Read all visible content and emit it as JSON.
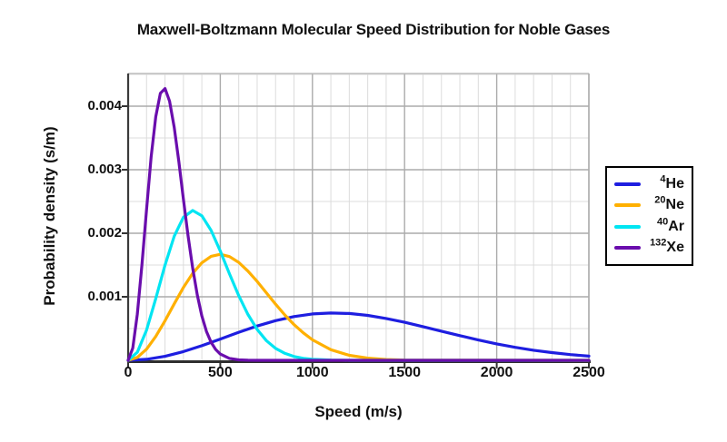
{
  "title": "Maxwell-Boltzmann Molecular Speed Distribution for Noble Gases",
  "chart_data": {
    "type": "line",
    "title": "Maxwell-Boltzmann Molecular Speed Distribution for Noble Gases",
    "xlabel": "Speed (m/s)",
    "ylabel": "Probability density (s/m)",
    "xlim": [
      0,
      2500
    ],
    "ylim": [
      0,
      0.0045143
    ],
    "x_ticks": [
      0,
      500,
      1000,
      1500,
      2000,
      2500
    ],
    "x_tick_labels": [
      "0",
      "500",
      "1000",
      "1500",
      "2000",
      "2500"
    ],
    "y_ticks": [
      0.001,
      0.002,
      0.003,
      0.004
    ],
    "y_tick_labels": [
      "0.001",
      "0.002",
      "0.003",
      "0.004"
    ],
    "grid": {
      "visible": true,
      "minor_x_step": 100,
      "major_x_step": 500,
      "minor_y_step": 0.0005,
      "major_y_step": 0.001
    },
    "legend": {
      "position": "right-outside"
    },
    "series": [
      {
        "name": "4He",
        "mass": "4",
        "symbol": "He",
        "color": "#1E1EE0",
        "peak_speed_m_s": 1113,
        "peak_density_s_m": 0.000746,
        "points": [
          [
            0,
            0
          ],
          [
            100,
            1.62e-05
          ],
          [
            200,
            6.34e-05
          ],
          [
            300,
            0.000137
          ],
          [
            400,
            0.00023
          ],
          [
            500,
            0.000334
          ],
          [
            600,
            0.000441
          ],
          [
            700,
            0.00054
          ],
          [
            800,
            0.000625
          ],
          [
            900,
            0.000689
          ],
          [
            1000,
            0.00073
          ],
          [
            1100,
            0.000745
          ],
          [
            1200,
            0.000737
          ],
          [
            1300,
            0.000707
          ],
          [
            1400,
            0.000659
          ],
          [
            1500,
            0.000599
          ],
          [
            1600,
            0.00053
          ],
          [
            1700,
            0.000459
          ],
          [
            1800,
            0.000388
          ],
          [
            1900,
            0.00032
          ],
          [
            2000,
            0.000259
          ],
          [
            2100,
            0.000205
          ],
          [
            2200,
            0.000159
          ],
          [
            2300,
            0.000121
          ],
          [
            2400,
            9e-05
          ],
          [
            2500,
            6.59e-05
          ]
        ]
      },
      {
        "name": "20Ne",
        "mass": "20",
        "symbol": "Ne",
        "color": "#FFB000",
        "peak_speed_m_s": 498,
        "peak_density_s_m": 0.001668,
        "points": [
          [
            0,
            0
          ],
          [
            50,
            4.53e-05
          ],
          [
            100,
            0.000176
          ],
          [
            150,
            0.000376
          ],
          [
            200,
            0.000623
          ],
          [
            250,
            0.000889
          ],
          [
            300,
            0.001146
          ],
          [
            350,
            0.001368
          ],
          [
            400,
            0.001535
          ],
          [
            450,
            0.001637
          ],
          [
            500,
            0.001668
          ],
          [
            550,
            0.001633
          ],
          [
            600,
            0.001541
          ],
          [
            650,
            0.001405
          ],
          [
            700,
            0.001241
          ],
          [
            750,
            0.001063
          ],
          [
            800,
            0.000884
          ],
          [
            850,
            0.000715
          ],
          [
            900,
            0.000563
          ],
          [
            950,
            0.000433
          ],
          [
            1000,
            0.000323
          ],
          [
            1100,
            0.000167
          ],
          [
            1200,
            7.88e-05
          ],
          [
            1300,
            3.37e-05
          ],
          [
            1400,
            1.31e-05
          ],
          [
            1500,
            4.7e-06
          ],
          [
            2500,
            0
          ]
        ]
      },
      {
        "name": "40Ar",
        "mass": "40",
        "symbol": "Ar",
        "color": "#00E5F2",
        "peak_speed_m_s": 352,
        "peak_density_s_m": 0.002359,
        "points": [
          [
            0,
            0
          ],
          [
            50,
            0.000127
          ],
          [
            100,
            0.000477
          ],
          [
            150,
            0.000971
          ],
          [
            200,
            0.001498
          ],
          [
            250,
            0.001953
          ],
          [
            300,
            0.002252
          ],
          [
            350,
            0.002358
          ],
          [
            400,
            0.002276
          ],
          [
            450,
            0.002044
          ],
          [
            500,
            0.00172
          ],
          [
            550,
            0.001362
          ],
          [
            600,
            0.001019
          ],
          [
            650,
            0.000723
          ],
          [
            700,
            0.000486
          ],
          [
            750,
            0.00031
          ],
          [
            800,
            0.000189
          ],
          [
            850,
            0.00011
          ],
          [
            900,
            6.06e-05
          ],
          [
            950,
            3.21e-05
          ],
          [
            1000,
            1.62e-05
          ],
          [
            1100,
            3.6e-06
          ],
          [
            1200,
            7e-07
          ],
          [
            2500,
            0
          ]
        ]
      },
      {
        "name": "132Xe",
        "mass": "132",
        "symbol": "Xe",
        "color": "#6A0DAD",
        "peak_speed_m_s": 194,
        "peak_density_s_m": 0.004286,
        "points": [
          [
            0,
            0
          ],
          [
            25,
            0.000191
          ],
          [
            50,
            0.000726
          ],
          [
            75,
            0.001504
          ],
          [
            100,
            0.002379
          ],
          [
            125,
            0.0032
          ],
          [
            150,
            0.003835
          ],
          [
            175,
            0.004204
          ],
          [
            200,
            0.004277
          ],
          [
            225,
            0.004078
          ],
          [
            250,
            0.003669
          ],
          [
            275,
            0.003129
          ],
          [
            300,
            0.002539
          ],
          [
            325,
            0.001965
          ],
          [
            350,
            0.001454
          ],
          [
            375,
            0.001029
          ],
          [
            400,
            0.000698
          ],
          [
            425,
            0.000455
          ],
          [
            450,
            0.000285
          ],
          [
            475,
            0.000171
          ],
          [
            500,
            9.91e-05
          ],
          [
            550,
            2.96e-05
          ],
          [
            600,
            7.6e-06
          ],
          [
            650,
            1.9e-06
          ],
          [
            700,
            5e-07
          ],
          [
            2500,
            0
          ]
        ]
      }
    ]
  }
}
